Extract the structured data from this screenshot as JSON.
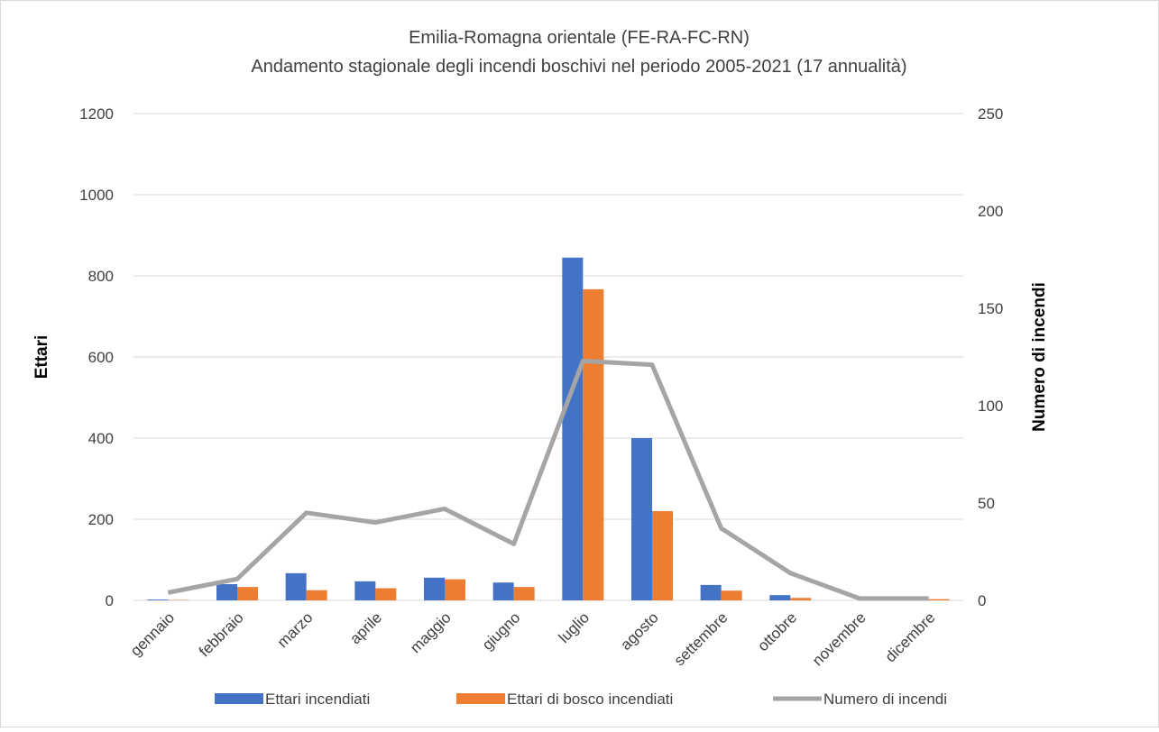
{
  "chart_data": {
    "type": "bar_line",
    "title": "Emilia-Romagna orientale (FE-RA-FC-RN)",
    "subtitle": "Andamento stagionale degli incendi boschivi nel periodo 2005-2021 (17 annualità)",
    "y_label": "Ettari",
    "y2_label": "Numero di incendi",
    "categories": [
      "gennaio",
      "febbraio",
      "marzo",
      "aprile",
      "maggio",
      "giugno",
      "luglio",
      "agosto",
      "settembre",
      "ottobre",
      "novembre",
      "dicembre"
    ],
    "series": [
      {
        "name": "Ettari incendiati",
        "color": "#4472c4",
        "type": "bar",
        "values": [
          2,
          40,
          67,
          47,
          56,
          44,
          845,
          400,
          38,
          13,
          0,
          0
        ]
      },
      {
        "name": "Ettari di bosco incendiati",
        "color": "#ed7d31",
        "type": "bar",
        "values": [
          1,
          33,
          25,
          30,
          52,
          33,
          767,
          220,
          24,
          6,
          0,
          3
        ]
      },
      {
        "name": "Numero di incendi",
        "color": "#a5a5a5",
        "type": "line",
        "axis": "y2",
        "values": [
          4,
          11,
          45,
          40,
          47,
          29,
          123,
          121,
          37,
          14,
          1,
          1
        ]
      }
    ],
    "ylim": [
      0,
      1200
    ],
    "yticks": [
      0,
      200,
      400,
      600,
      800,
      1000,
      1200
    ],
    "y2lim": [
      0,
      250
    ],
    "y2ticks": [
      0,
      50,
      100,
      150,
      200,
      250
    ],
    "grid": true,
    "legend": "bottom"
  }
}
